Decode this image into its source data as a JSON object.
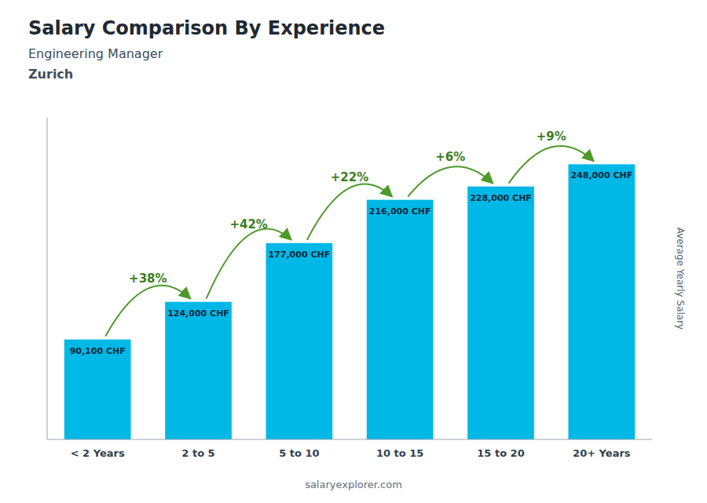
{
  "chart_data": {
    "type": "bar",
    "title": "Salary Comparison By Experience",
    "subtitle": "Engineering Manager",
    "city": "Zurich",
    "ylabel": "Average Yearly Salary",
    "credit": "salaryexplorer.com",
    "categories": [
      "< 2 Years",
      "2 to 5",
      "5 to 10",
      "10 to 15",
      "15 to 20",
      "20+ Years"
    ],
    "values": [
      90100,
      124000,
      177000,
      216000,
      228000,
      248000
    ],
    "value_labels": [
      "90,100 CHF",
      "124,000 CHF",
      "177,000 CHF",
      "216,000 CHF",
      "228,000 CHF",
      "248,000 CHF"
    ],
    "annotations": [
      "+38%",
      "+42%",
      "+22%",
      "+6%",
      "+9%"
    ],
    "color": "#00b8e6",
    "ylim": [
      0,
      290000
    ],
    "yticks": [],
    "tick_labels": "x",
    "grid": false,
    "data_labels": true
  }
}
